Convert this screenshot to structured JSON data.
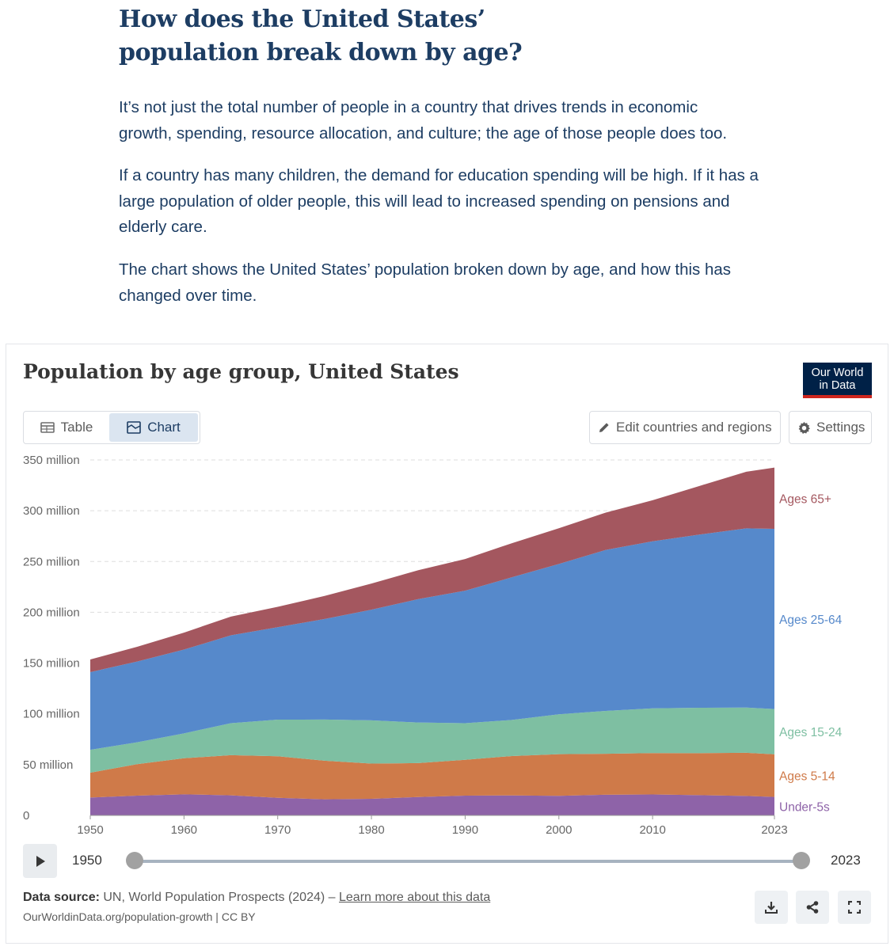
{
  "article": {
    "heading_line1": "How does the United States’",
    "heading_line2": "population break down by age?",
    "para1_line1": "It’s not just the total number of people in a country that drives trends in economic",
    "para1_line2": "growth, spending, resource allocation, and culture; the age of those people does too.",
    "para2_line1": "If a country has many children, the demand for education spending will be high. If it has a",
    "para2_line2": "large population of older people, this will lead to increased spending on pensions and",
    "para2_line3": "elderly care.",
    "para3_line1": "The chart shows the United States’ population broken down by age, and how this has",
    "para3_line2": "changed over time."
  },
  "card": {
    "title": "Population by age group, United States",
    "logo_line1": "Our World",
    "logo_line2": "in Data",
    "tab_table": "Table",
    "tab_chart": "Chart",
    "edit_button": "Edit countries and regions",
    "settings_button": "Settings",
    "timeline": {
      "start_label": "1950",
      "end_label": "2023"
    },
    "source_label": "Data source:",
    "source_text": " UN, World Population Prospects (2024) – ",
    "source_link": "Learn more about this data",
    "url_text": "OurWorldinData.org/population-growth | CC BY"
  },
  "colors": {
    "under5": "#8e63a8",
    "ages5_14": "#cf7a49",
    "ages15_24": "#7ebfa2",
    "ages25_64": "#5689cb",
    "ages65": "#a4575f"
  },
  "chart_data": {
    "type": "area",
    "stacked": true,
    "title": "Population by age group, United States",
    "x": [
      1950,
      1955,
      1960,
      1965,
      1970,
      1975,
      1980,
      1985,
      1990,
      1995,
      2000,
      2005,
      2010,
      2015,
      2020,
      2023
    ],
    "x_ticks": [
      "1950",
      "1960",
      "1970",
      "1980",
      "1990",
      "2000",
      "2010",
      "2023"
    ],
    "y_ticks": [
      "0",
      "50 million",
      "100 million",
      "150 million",
      "200 million",
      "250 million",
      "300 million",
      "350 million"
    ],
    "ylim": [
      0,
      350000000
    ],
    "grid": true,
    "series": [
      {
        "name": "Under-5s",
        "color_key": "under5",
        "values": [
          17600000,
          19500000,
          20800000,
          19800000,
          17300000,
          15900000,
          16400000,
          18100000,
          19500000,
          19700000,
          19300000,
          20400000,
          20700000,
          20000000,
          19200000,
          18200000
        ]
      },
      {
        "name": "Ages 5-14",
        "color_key": "ages5_14",
        "values": [
          24500000,
          31000000,
          35500000,
          39500000,
          41000000,
          38000000,
          34700000,
          33400000,
          35300000,
          38800000,
          41000000,
          40300000,
          40700000,
          41300000,
          42500000,
          42000000
        ]
      },
      {
        "name": "Ages 15-24",
        "color_key": "ages15_24",
        "values": [
          22500000,
          21500000,
          24500000,
          31500000,
          36000000,
          40500000,
          42500000,
          40000000,
          36000000,
          35500000,
          39300000,
          42200000,
          44000000,
          44700000,
          44500000,
          44500000
        ]
      },
      {
        "name": "Ages 25-64",
        "color_key": "ages25_64",
        "values": [
          76500000,
          79500000,
          82500000,
          86500000,
          91000000,
          99000000,
          109000000,
          121500000,
          130500000,
          140500000,
          148000000,
          158500000,
          164500000,
          170500000,
          176500000,
          177500000
        ]
      },
      {
        "name": "Ages 65+",
        "color_key": "ages65",
        "values": [
          12500000,
          14500000,
          16700000,
          18500000,
          20100000,
          22700000,
          25700000,
          28500000,
          31200000,
          33600000,
          35200000,
          36800000,
          40400000,
          47900000,
          55700000,
          60300000
        ]
      }
    ]
  }
}
